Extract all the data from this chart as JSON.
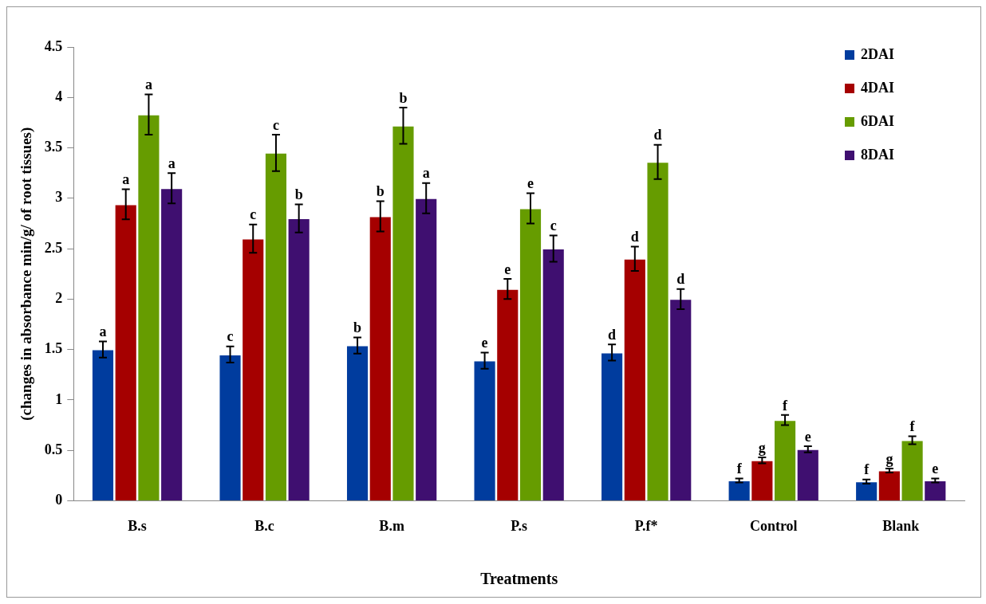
{
  "chart_data": {
    "type": "bar",
    "xlabel": "Treatments",
    "ylabel": "(changes in absorbance min/g/ of root tissues)",
    "categories": [
      "B.s",
      "B.c",
      "B.m",
      "P.s",
      "P.f*",
      "Control",
      "Blank"
    ],
    "series": [
      {
        "name": "2DAI",
        "color": "#003c9e",
        "values": [
          1.5,
          1.45,
          1.54,
          1.39,
          1.47,
          0.2,
          0.19
        ],
        "errors": [
          0.08,
          0.08,
          0.08,
          0.08,
          0.08,
          0.02,
          0.02
        ],
        "value_labels": [
          "a",
          "c",
          "b",
          "e",
          "d",
          "f",
          "f"
        ]
      },
      {
        "name": "4DAI",
        "color": "#a50000",
        "values": [
          2.94,
          2.6,
          2.82,
          2.1,
          2.4,
          0.4,
          0.3
        ],
        "errors": [
          0.15,
          0.14,
          0.15,
          0.1,
          0.12,
          0.03,
          0.02
        ],
        "value_labels": [
          "a",
          "c",
          "b",
          "e",
          "d",
          "g",
          "g"
        ]
      },
      {
        "name": "6DAI",
        "color": "#669c00",
        "values": [
          3.83,
          3.45,
          3.72,
          2.9,
          3.36,
          0.8,
          0.6
        ],
        "errors": [
          0.2,
          0.18,
          0.18,
          0.15,
          0.17,
          0.05,
          0.04
        ],
        "value_labels": [
          "a",
          "c",
          "b",
          "e",
          "d",
          "f",
          "f"
        ]
      },
      {
        "name": "8DAI",
        "color": "#3f0f70",
        "values": [
          3.1,
          2.8,
          3.0,
          2.5,
          2.0,
          0.51,
          0.2
        ],
        "errors": [
          0.15,
          0.14,
          0.15,
          0.13,
          0.1,
          0.03,
          0.02
        ],
        "value_labels": [
          "a",
          "b",
          "a",
          "c",
          "d",
          "e",
          "e"
        ]
      }
    ],
    "ylim": [
      0,
      4.5
    ],
    "yticks": [
      0,
      0.5,
      1,
      1.5,
      2,
      2.5,
      3,
      3.5,
      4,
      4.5
    ],
    "grid": false,
    "legend": "top right"
  }
}
